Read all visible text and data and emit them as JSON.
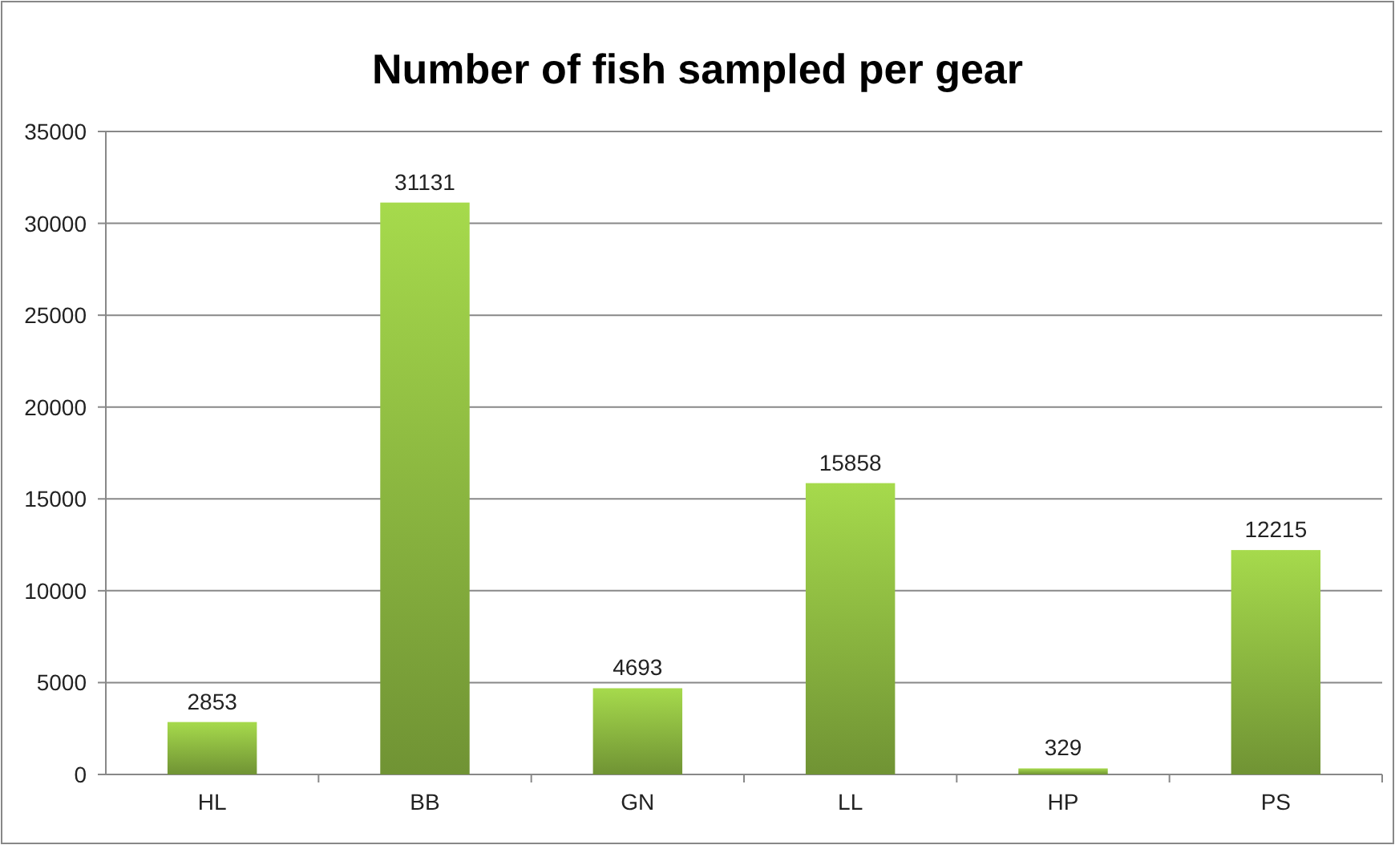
{
  "chart_data": {
    "type": "bar",
    "title": "Number of fish sampled per gear",
    "categories": [
      "HL",
      "BB",
      "GN",
      "LL",
      "HP",
      "PS"
    ],
    "values": [
      2853,
      31131,
      4693,
      15858,
      329,
      12215
    ],
    "color": "#8bb640",
    "ylim": [
      0,
      35000
    ],
    "yticks": [
      0,
      5000,
      10000,
      15000,
      20000,
      25000,
      30000,
      35000
    ],
    "grid": "y",
    "data_labels": true
  }
}
